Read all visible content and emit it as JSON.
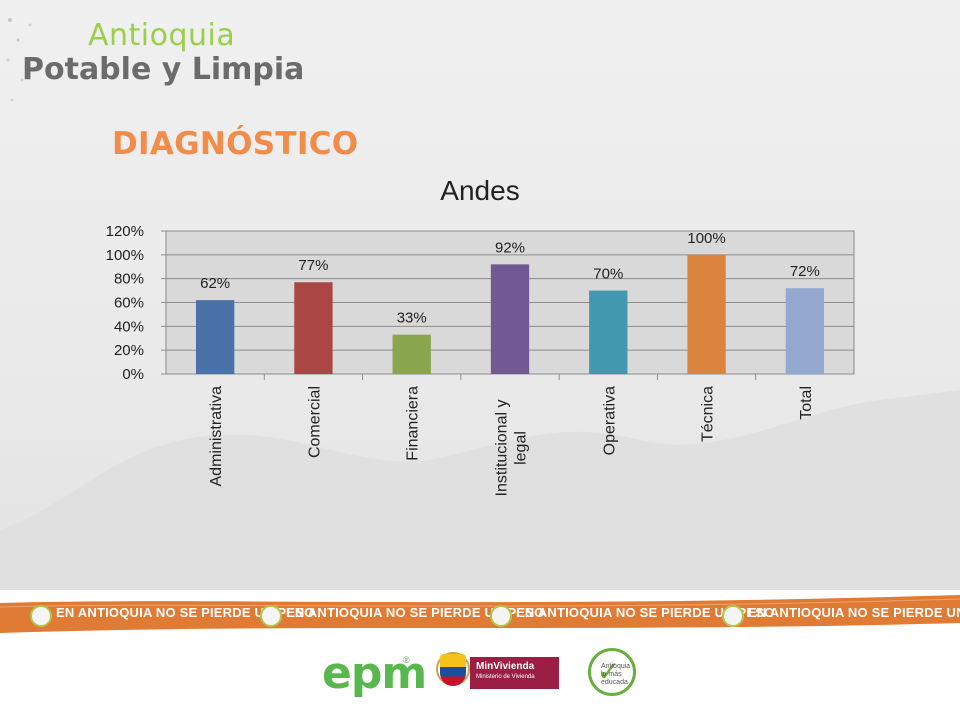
{
  "logo": {
    "line1": "Antioquia",
    "line2": "Potable y Limpia"
  },
  "heading": "DIAGNÓSTICO",
  "colors": {
    "heading": "#f28c4a",
    "banner": "#e07b35",
    "logo_green": "#9bcf4a",
    "plot_bg": "#d9d9d9"
  },
  "chart_data": {
    "type": "bar",
    "title": "Andes",
    "categories": [
      "Administrativa",
      "Comercial",
      "Financiera",
      "Institucional y legal",
      "Operativa",
      "Técnica",
      "Total"
    ],
    "category_lines": [
      [
        "Administrativa"
      ],
      [
        "Comercial"
      ],
      [
        "Financiera"
      ],
      [
        "Institucional y",
        "legal"
      ],
      [
        "Operativa"
      ],
      [
        "Técnica"
      ],
      [
        "Total"
      ]
    ],
    "values": [
      0.62,
      0.77,
      0.33,
      0.92,
      0.7,
      1.0,
      0.72
    ],
    "data_labels": [
      "62%",
      "77%",
      "33%",
      "92%",
      "70%",
      "100%",
      "72%"
    ],
    "bar_colors": [
      "#4a72a8",
      "#aa4644",
      "#89a54e",
      "#715a93",
      "#4298ae",
      "#db843d",
      "#93a9cf"
    ],
    "ylim": [
      0,
      1.2
    ],
    "yticks": [
      "0%",
      "20%",
      "40%",
      "60%",
      "80%",
      "100%",
      "120%"
    ],
    "grid": true,
    "xlabel": "",
    "ylabel": ""
  },
  "banner": {
    "text": "EN ANTIOQUIA NO SE PIERDE UN PESO"
  },
  "footer": {
    "epm": "epm",
    "epm_reg": "®",
    "minvivienda": "MinVivienda",
    "minvivienda_sub": "Ministerio de Vivienda",
    "edu": "Antioquia la más educada"
  }
}
